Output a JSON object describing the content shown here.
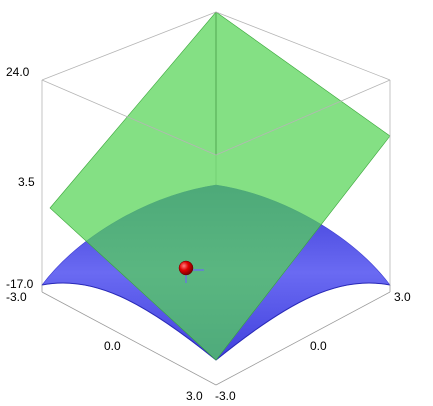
{
  "chart_data": {
    "type": "surface3d",
    "x_range": [
      -3.0,
      3.0
    ],
    "y_range": [
      -3.0,
      3.0
    ],
    "z_range": [
      -17.0,
      24.0
    ],
    "x_ticks": [
      "-3.0",
      "0.0",
      "3.0"
    ],
    "y_ticks": [
      "-3.0",
      "0.0",
      "3.0"
    ],
    "z_ticks": [
      "-17.0",
      "3.5",
      "24.0"
    ],
    "surfaces": [
      {
        "kind": "paraboloid",
        "color": "#5555ee"
      },
      {
        "kind": "tangent-plane",
        "color": "#66dd66"
      }
    ],
    "marked_point": {
      "color": "#dd0000"
    }
  }
}
